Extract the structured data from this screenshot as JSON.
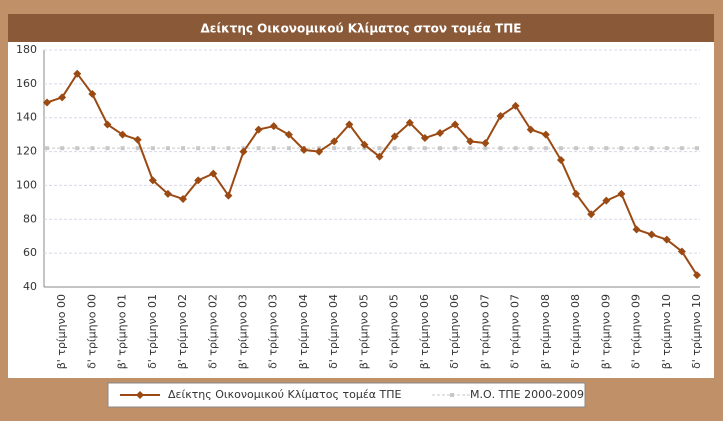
{
  "chart_data": {
    "type": "line",
    "title": "Δείκτης Οικονομικού Κλίματος στον τομέα ΤΠΕ",
    "categories": [
      null,
      "β' τρίμηνο 00",
      null,
      "δ' τρίμηνο 00",
      null,
      "β' τρίμηνο 01",
      null,
      "δ' τρίμηνο 01",
      null,
      "β' τρίμηνο 02",
      null,
      "δ' τρίμηνο 02",
      null,
      "β' τρίμηνο 03",
      null,
      "δ' τρίμηνο 03",
      null,
      "β' τρίμηνο 04",
      null,
      "δ' τρίμηνο 04",
      null,
      "β' τρίμηνο 05",
      null,
      "δ' τρίμηνο 05",
      null,
      "β' τρίμηνο 06",
      null,
      "δ' τρίμηνο 06",
      null,
      "β' τρίμηνο 07",
      null,
      "δ' τρίμηνο 07",
      null,
      "β' τρίμηνο 08",
      null,
      "δ' τρίμηνο 08",
      null,
      "β' τρίμηνο 09",
      null,
      "δ' τρίμηνο 09",
      null,
      "β' τρίμηνο 10",
      null,
      "δ' τρίμηνο 10"
    ],
    "series": [
      {
        "name": "Δείκτης Οικονομικού Κλίματος τομέα ΤΠΕ",
        "color": "#9a4a12",
        "values": [
          149,
          152,
          166,
          154,
          136,
          130,
          127,
          103,
          95,
          92,
          103,
          107,
          94,
          120,
          133,
          135,
          130,
          121,
          120,
          126,
          136,
          124,
          117,
          129,
          137,
          128,
          131,
          136,
          126,
          125,
          141,
          147,
          133,
          130,
          115,
          95,
          83,
          91,
          95,
          74,
          71,
          68,
          61,
          47
        ]
      },
      {
        "name": "Μ.Ο. ΤΠΕ 2000-2009",
        "color": "#c8c8c8",
        "values": [
          122,
          122,
          122,
          122,
          122,
          122,
          122,
          122,
          122,
          122,
          122,
          122,
          122,
          122,
          122,
          122,
          122,
          122,
          122,
          122,
          122,
          122,
          122,
          122,
          122,
          122,
          122,
          122,
          122,
          122,
          122,
          122,
          122,
          122,
          122,
          122,
          122,
          122,
          122,
          122,
          122,
          122,
          122,
          122
        ]
      }
    ],
    "ylim": [
      40,
      180
    ],
    "yticks": [
      40,
      60,
      80,
      100,
      120,
      140,
      160,
      180
    ],
    "grid": true
  }
}
